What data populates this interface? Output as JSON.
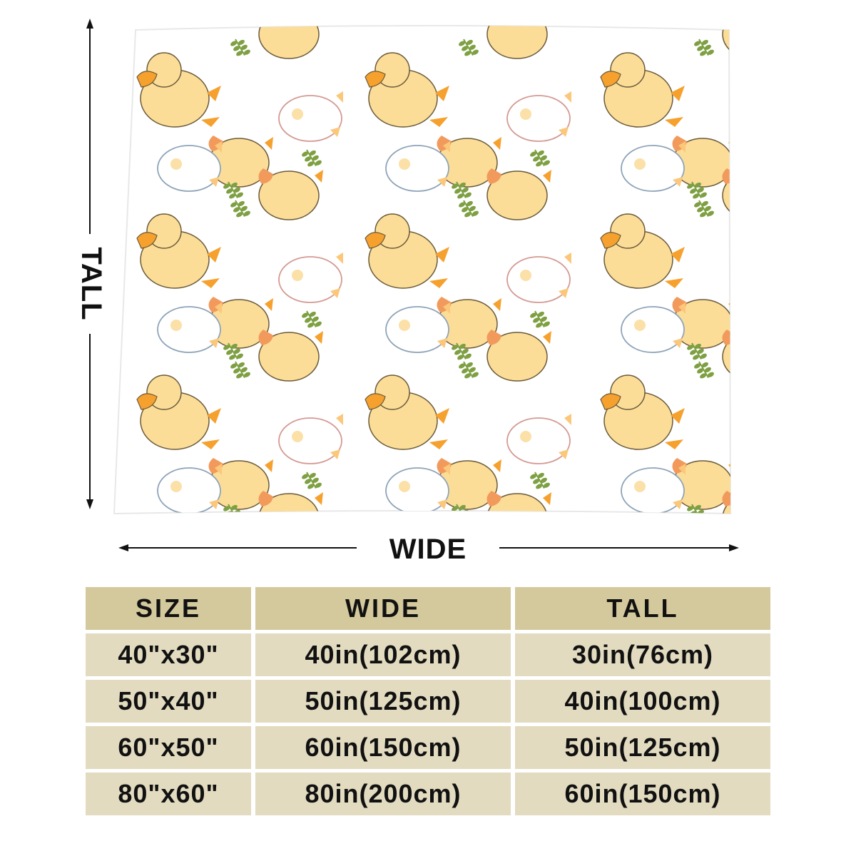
{
  "dimension_labels": {
    "wide": "WIDE",
    "tall": "TALL"
  },
  "pattern": {
    "description": "duck-pattern",
    "colors": {
      "yellow_duck": "#fbdd98",
      "beak": "#f6a12e",
      "white_duck_outline_blue": "#8ea4b8",
      "white_duck_outline_red": "#d49a93",
      "leaf": "#7ea043",
      "background": "#ffffff"
    }
  },
  "size_table": {
    "headers": [
      "SIZE",
      "WIDE",
      "TALL"
    ],
    "rows": [
      {
        "size": "40\"x30\"",
        "wide": "40in(102cm)",
        "tall": "30in(76cm)"
      },
      {
        "size": "50\"x40\"",
        "wide": "50in(125cm)",
        "tall": "40in(100cm)"
      },
      {
        "size": "60\"x50\"",
        "wide": "60in(150cm)",
        "tall": "50in(125cm)"
      },
      {
        "size": "80\"x60\"",
        "wide": "80in(200cm)",
        "tall": "60in(150cm)"
      }
    ],
    "colors": {
      "header_bg": "#d4c99c",
      "row_bg": "#e2dbc0"
    }
  }
}
